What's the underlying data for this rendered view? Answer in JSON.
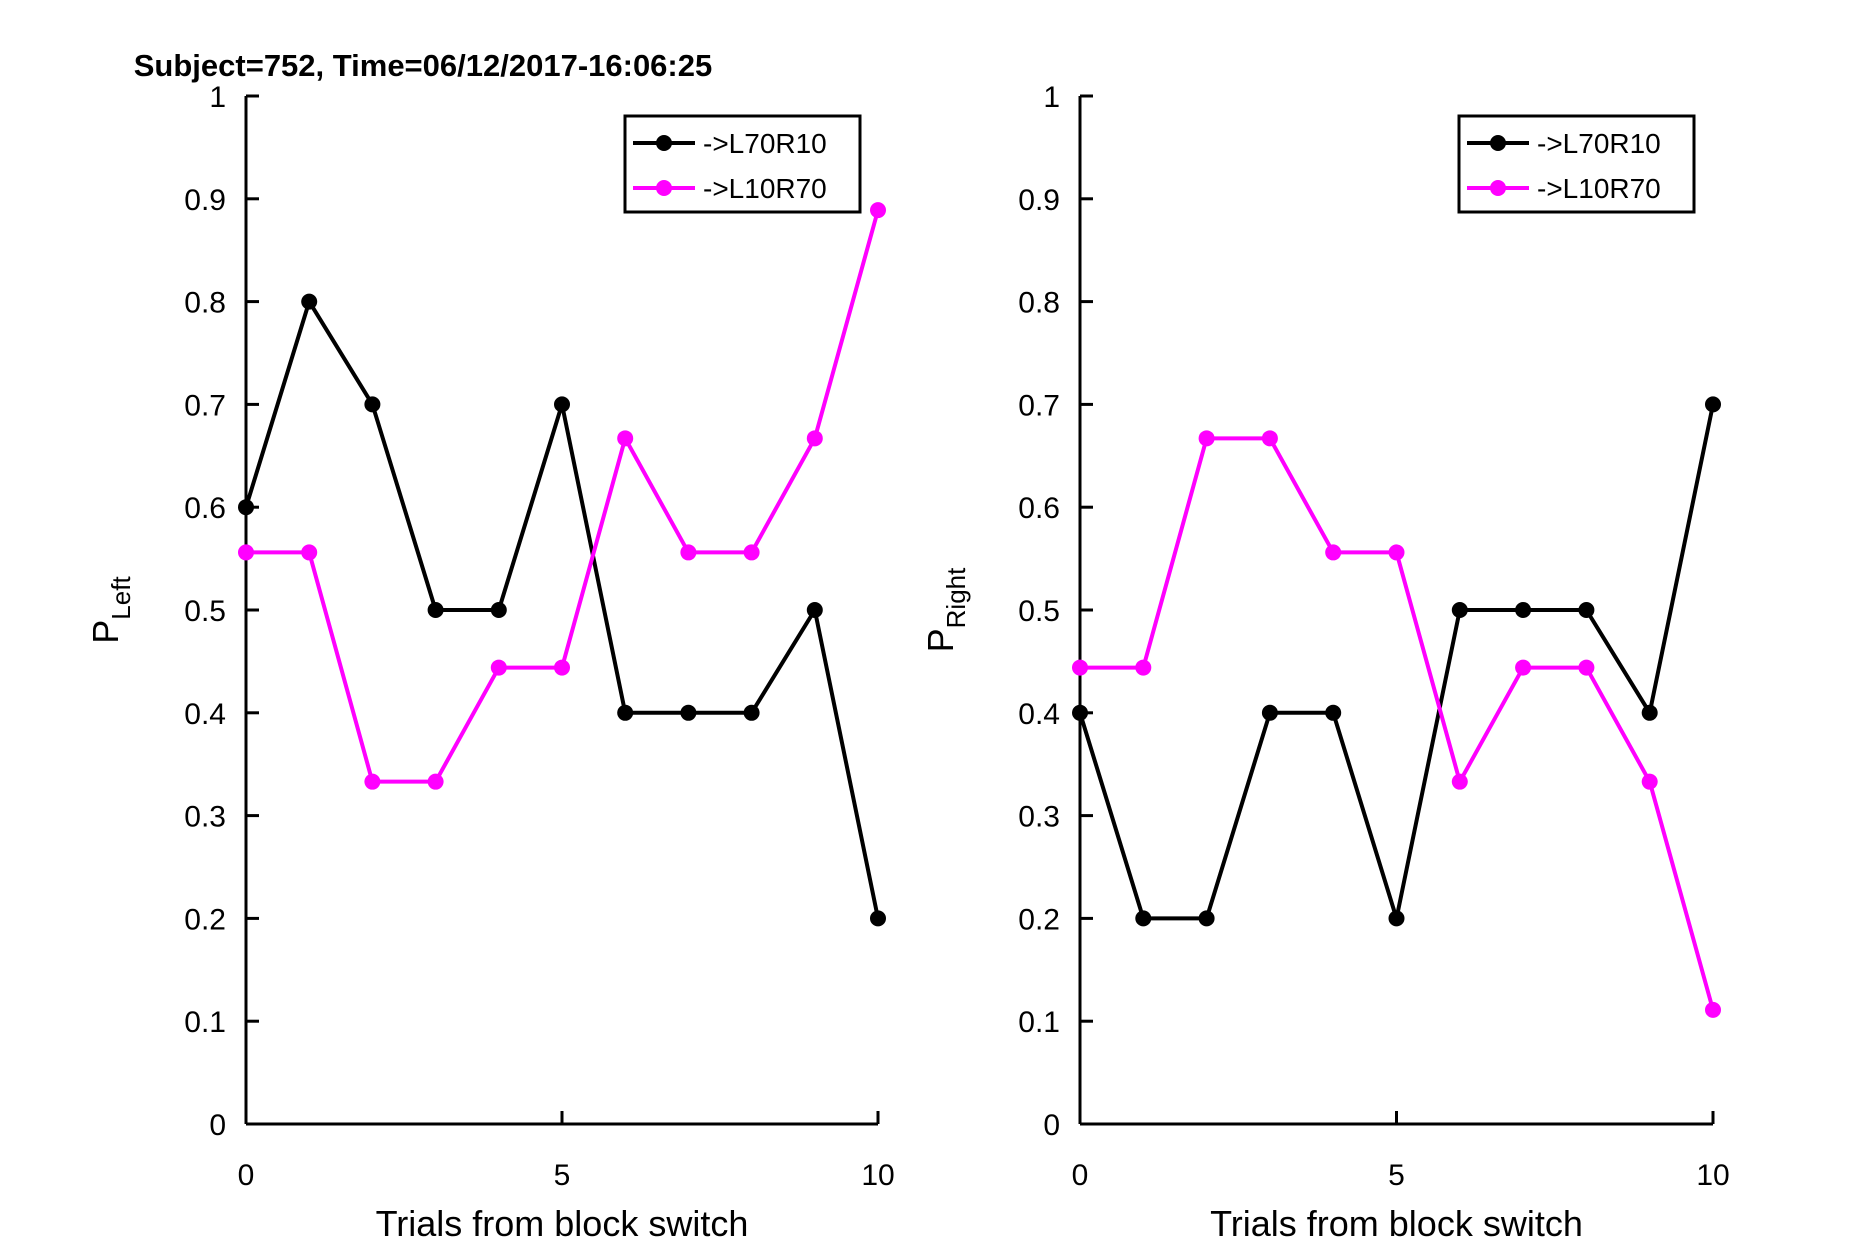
{
  "figure_title": "Subject=752, Time=06/12/2017-16:06:25",
  "chart_data": [
    {
      "type": "line",
      "xlabel": "Trials from block switch",
      "ylabel": {
        "main": "P",
        "subscript": "Left"
      },
      "xlim": [
        0,
        10
      ],
      "ylim": [
        0,
        1
      ],
      "xticks": [
        0,
        5,
        10
      ],
      "xtick_labels": [
        "0",
        "5",
        "10"
      ],
      "yticks": [
        0,
        0.1,
        0.2,
        0.3,
        0.4,
        0.5,
        0.6,
        0.7,
        0.8,
        0.9,
        1
      ],
      "ytick_labels": [
        "0",
        "0.1",
        "0.2",
        "0.3",
        "0.4",
        "0.5",
        "0.6",
        "0.7",
        "0.8",
        "0.9",
        "1"
      ],
      "grid": false,
      "legend_position": "top-right",
      "x": [
        0,
        1,
        2,
        3,
        4,
        5,
        6,
        7,
        8,
        9,
        10
      ],
      "series": [
        {
          "name": "->L70R10",
          "color": "#000000",
          "values": [
            0.6,
            0.8,
            0.7,
            0.5,
            0.5,
            0.7,
            0.4,
            0.4,
            0.4,
            0.5,
            0.2
          ]
        },
        {
          "name": "->L10R70",
          "color": "#ff00ff",
          "values": [
            0.556,
            0.556,
            0.333,
            0.333,
            0.444,
            0.444,
            0.667,
            0.556,
            0.556,
            0.667,
            0.889
          ]
        }
      ]
    },
    {
      "type": "line",
      "xlabel": "Trials from block switch",
      "ylabel": {
        "main": "P",
        "subscript": "Right"
      },
      "xlim": [
        0,
        10
      ],
      "ylim": [
        0,
        1
      ],
      "xticks": [
        0,
        5,
        10
      ],
      "xtick_labels": [
        "0",
        "5",
        "10"
      ],
      "yticks": [
        0,
        0.1,
        0.2,
        0.3,
        0.4,
        0.5,
        0.6,
        0.7,
        0.8,
        0.9,
        1
      ],
      "ytick_labels": [
        "0",
        "0.1",
        "0.2",
        "0.3",
        "0.4",
        "0.5",
        "0.6",
        "0.7",
        "0.8",
        "0.9",
        "1"
      ],
      "grid": false,
      "legend_position": "top-right",
      "x": [
        0,
        1,
        2,
        3,
        4,
        5,
        6,
        7,
        8,
        9,
        10
      ],
      "series": [
        {
          "name": "->L70R10",
          "color": "#000000",
          "values": [
            0.4,
            0.2,
            0.2,
            0.4,
            0.4,
            0.2,
            0.5,
            0.5,
            0.5,
            0.4,
            0.7
          ]
        },
        {
          "name": "->L10R70",
          "color": "#ff00ff",
          "values": [
            0.444,
            0.444,
            0.667,
            0.667,
            0.556,
            0.556,
            0.333,
            0.444,
            0.444,
            0.333,
            0.111
          ]
        }
      ]
    }
  ]
}
